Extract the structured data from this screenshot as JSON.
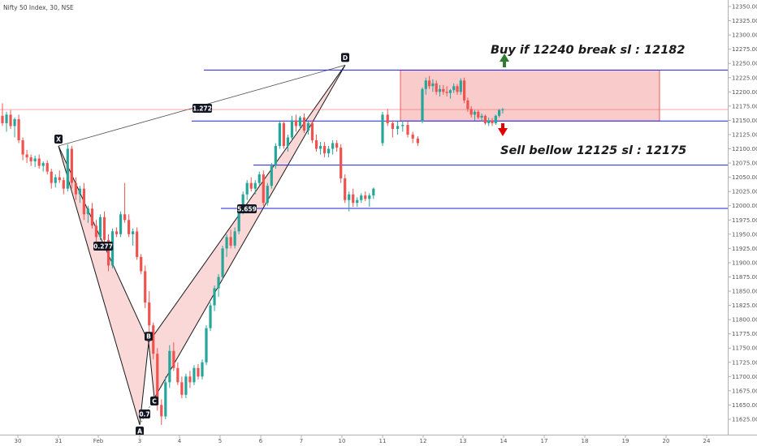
{
  "header": {
    "symbol_title": "Nifty 50 Index, 30, NSE"
  },
  "chart_data": {
    "type": "candlestick",
    "title": "Nifty 50 Index, 30, NSE",
    "y_axis": {
      "position": "right",
      "range": [
        11608,
        12370
      ],
      "ticks": [
        11625,
        11650,
        11675,
        11700,
        11725,
        11750,
        11775,
        11800,
        11825,
        11850,
        11875,
        11900,
        11925,
        11950,
        11975,
        12000,
        12025,
        12050,
        12075,
        12100,
        12125,
        12150,
        12175,
        12200,
        12225,
        12250,
        12275,
        12300,
        12325,
        12350
      ],
      "tick_labels": [
        "11625.00",
        "11650.00",
        "11675.00",
        "11700.00",
        "11725.00",
        "11750.00",
        "11775.00",
        "11800.00",
        "11825.00",
        "11850.00",
        "11875.00",
        "11900.00",
        "11925.00",
        "11950.00",
        "11975.00",
        "12000.00",
        "12025.00",
        "12050.00",
        "12075.00",
        "12100.00",
        "12125.00",
        "12150.00",
        "12175.00",
        "12200.00",
        "12225.00",
        "12250.00",
        "12275.00",
        "12300.00",
        "12325.00",
        "12350.00"
      ]
    },
    "x_axis": {
      "position": "bottom",
      "tick_labels": [
        "30",
        "31",
        "Feb",
        "3",
        "4",
        "5",
        "6",
        "7",
        "10",
        "11",
        "12",
        "13",
        "14",
        "17",
        "18",
        "19",
        "20",
        "24"
      ]
    },
    "grid": false,
    "last_price": {
      "value": 12168.95,
      "label": "12168.95",
      "color": "#ef5350"
    },
    "levels": [
      {
        "value": 12238.33,
        "label": "12238.33",
        "color": "#1e22d8"
      },
      {
        "value": 12148.89,
        "label": "12148.89",
        "color": "#1e22d8"
      },
      {
        "value": 12071.4,
        "label": "12071.40",
        "color": "#1e22d8"
      },
      {
        "value": 11995.3,
        "label": "11995.30",
        "color": "#1e22d8"
      }
    ],
    "harmonic_pattern": {
      "points": [
        {
          "name": "X",
          "price": 12105
        },
        {
          "name": "A",
          "price": 11615
        },
        {
          "name": "B",
          "price": 11760
        },
        {
          "name": "C",
          "price": 11662
        },
        {
          "name": "D",
          "price": 12247
        }
      ],
      "ratios": [
        "0.277",
        "0.7",
        "1.272",
        "5.659"
      ],
      "fill_color": "#f8c8c8",
      "line_color": "#1a1a1a"
    },
    "zone": {
      "top": 12238.33,
      "bottom": 12148.89,
      "fill_color": "#f7a8a8",
      "border_color": "#e53935"
    },
    "annotations": {
      "buy_text": "Buy if 12240 break sl : 12182",
      "sell_text": "Sell bellow 12125 sl : 12175"
    },
    "colors": {
      "up": "#26a69a",
      "down": "#ef5350",
      "buy_arrow": "#2e7d32",
      "sell_arrow": "#e00000"
    },
    "candles": [
      {
        "o": 12158,
        "h": 12180,
        "l": 12140,
        "c": 12145
      },
      {
        "o": 12145,
        "h": 12165,
        "l": 12130,
        "c": 12160
      },
      {
        "o": 12160,
        "h": 12168,
        "l": 12135,
        "c": 12140
      },
      {
        "o": 12140,
        "h": 12155,
        "l": 12120,
        "c": 12152
      },
      {
        "o": 12152,
        "h": 12160,
        "l": 12110,
        "c": 12115
      },
      {
        "o": 12115,
        "h": 12120,
        "l": 12080,
        "c": 12090
      },
      {
        "o": 12090,
        "h": 12098,
        "l": 12075,
        "c": 12085
      },
      {
        "o": 12085,
        "h": 12090,
        "l": 12070,
        "c": 12078
      },
      {
        "o": 12078,
        "h": 12088,
        "l": 12068,
        "c": 12083
      },
      {
        "o": 12083,
        "h": 12090,
        "l": 12065,
        "c": 12070
      },
      {
        "o": 12070,
        "h": 12078,
        "l": 12060,
        "c": 12075
      },
      {
        "o": 12075,
        "h": 12080,
        "l": 12055,
        "c": 12060
      },
      {
        "o": 12060,
        "h": 12065,
        "l": 12030,
        "c": 12040
      },
      {
        "o": 12040,
        "h": 12055,
        "l": 12032,
        "c": 12050
      },
      {
        "o": 12050,
        "h": 12062,
        "l": 12040,
        "c": 12045
      },
      {
        "o": 12045,
        "h": 12050,
        "l": 12020,
        "c": 12030
      },
      {
        "o": 12030,
        "h": 12108,
        "l": 12025,
        "c": 12100
      },
      {
        "o": 12100,
        "h": 12105,
        "l": 12030,
        "c": 12040
      },
      {
        "o": 12040,
        "h": 12050,
        "l": 12010,
        "c": 12020
      },
      {
        "o": 12020,
        "h": 12035,
        "l": 12005,
        "c": 12030
      },
      {
        "o": 12030,
        "h": 12040,
        "l": 11975,
        "c": 11985
      },
      {
        "o": 11985,
        "h": 12000,
        "l": 11970,
        "c": 11995
      },
      {
        "o": 11995,
        "h": 12005,
        "l": 11960,
        "c": 11965
      },
      {
        "o": 11965,
        "h": 11975,
        "l": 11935,
        "c": 11945
      },
      {
        "o": 11945,
        "h": 11985,
        "l": 11940,
        "c": 11980
      },
      {
        "o": 11980,
        "h": 11990,
        "l": 11935,
        "c": 11940
      },
      {
        "o": 11940,
        "h": 11950,
        "l": 11885,
        "c": 11895
      },
      {
        "o": 11895,
        "h": 11960,
        "l": 11890,
        "c": 11955
      },
      {
        "o": 11955,
        "h": 11962,
        "l": 11945,
        "c": 11950
      },
      {
        "o": 11950,
        "h": 11990,
        "l": 11945,
        "c": 11985
      },
      {
        "o": 11985,
        "h": 12040,
        "l": 11970,
        "c": 11975
      },
      {
        "o": 11975,
        "h": 11985,
        "l": 11945,
        "c": 11950
      },
      {
        "o": 11950,
        "h": 11960,
        "l": 11930,
        "c": 11955
      },
      {
        "o": 11955,
        "h": 11962,
        "l": 11905,
        "c": 11910
      },
      {
        "o": 11910,
        "h": 11915,
        "l": 11880,
        "c": 11885
      },
      {
        "o": 11885,
        "h": 11895,
        "l": 11820,
        "c": 11830
      },
      {
        "o": 11830,
        "h": 11850,
        "l": 11775,
        "c": 11790
      },
      {
        "o": 11790,
        "h": 11795,
        "l": 11730,
        "c": 11740
      },
      {
        "o": 11740,
        "h": 11750,
        "l": 11640,
        "c": 11650
      },
      {
        "o": 11650,
        "h": 11660,
        "l": 11615,
        "c": 11630
      },
      {
        "o": 11630,
        "h": 11700,
        "l": 11625,
        "c": 11690
      },
      {
        "o": 11690,
        "h": 11755,
        "l": 11680,
        "c": 11745
      },
      {
        "o": 11745,
        "h": 11760,
        "l": 11710,
        "c": 11715
      },
      {
        "o": 11715,
        "h": 11725,
        "l": 11685,
        "c": 11690
      },
      {
        "o": 11690,
        "h": 11700,
        "l": 11662,
        "c": 11668
      },
      {
        "o": 11668,
        "h": 11705,
        "l": 11662,
        "c": 11700
      },
      {
        "o": 11700,
        "h": 11710,
        "l": 11680,
        "c": 11690
      },
      {
        "o": 11690,
        "h": 11720,
        "l": 11685,
        "c": 11715
      },
      {
        "o": 11715,
        "h": 11722,
        "l": 11695,
        "c": 11700
      },
      {
        "o": 11700,
        "h": 11730,
        "l": 11695,
        "c": 11725
      },
      {
        "o": 11725,
        "h": 11790,
        "l": 11720,
        "c": 11785
      },
      {
        "o": 11785,
        "h": 11830,
        "l": 11780,
        "c": 11825
      },
      {
        "o": 11825,
        "h": 11860,
        "l": 11815,
        "c": 11855
      },
      {
        "o": 11855,
        "h": 11880,
        "l": 11840,
        "c": 11875
      },
      {
        "o": 11875,
        "h": 11930,
        "l": 11870,
        "c": 11925
      },
      {
        "o": 11925,
        "h": 11950,
        "l": 11910,
        "c": 11945
      },
      {
        "o": 11945,
        "h": 11958,
        "l": 11925,
        "c": 11930
      },
      {
        "o": 11930,
        "h": 11962,
        "l": 11925,
        "c": 11955
      },
      {
        "o": 11955,
        "h": 12000,
        "l": 11950,
        "c": 11995
      },
      {
        "o": 11995,
        "h": 12025,
        "l": 11985,
        "c": 12020
      },
      {
        "o": 12020,
        "h": 12045,
        "l": 12010,
        "c": 12040
      },
      {
        "o": 12040,
        "h": 12050,
        "l": 12025,
        "c": 12030
      },
      {
        "o": 12030,
        "h": 12045,
        "l": 12020,
        "c": 12040
      },
      {
        "o": 12040,
        "h": 12060,
        "l": 12035,
        "c": 12055
      },
      {
        "o": 12055,
        "h": 12062,
        "l": 12000,
        "c": 12005
      },
      {
        "o": 12005,
        "h": 12040,
        "l": 12000,
        "c": 12035
      },
      {
        "o": 12035,
        "h": 12075,
        "l": 12030,
        "c": 12070
      },
      {
        "o": 12070,
        "h": 12110,
        "l": 12065,
        "c": 12105
      },
      {
        "o": 12105,
        "h": 12150,
        "l": 12100,
        "c": 12145
      },
      {
        "o": 12145,
        "h": 12150,
        "l": 12100,
        "c": 12105
      },
      {
        "o": 12105,
        "h": 12125,
        "l": 12095,
        "c": 12120
      },
      {
        "o": 12120,
        "h": 12158,
        "l": 12115,
        "c": 12150
      },
      {
        "o": 12150,
        "h": 12160,
        "l": 12130,
        "c": 12140
      },
      {
        "o": 12140,
        "h": 12158,
        "l": 12135,
        "c": 12155
      },
      {
        "o": 12155,
        "h": 12162,
        "l": 12128,
        "c": 12132
      },
      {
        "o": 12132,
        "h": 12150,
        "l": 12125,
        "c": 12145
      },
      {
        "o": 12145,
        "h": 12150,
        "l": 12110,
        "c": 12115
      },
      {
        "o": 12115,
        "h": 12125,
        "l": 12095,
        "c": 12100
      },
      {
        "o": 12100,
        "h": 12112,
        "l": 12090,
        "c": 12105
      },
      {
        "o": 12105,
        "h": 12112,
        "l": 12085,
        "c": 12092
      },
      {
        "o": 12092,
        "h": 12105,
        "l": 12085,
        "c": 12100
      },
      {
        "o": 12100,
        "h": 12115,
        "l": 12090,
        "c": 12110
      },
      {
        "o": 12110,
        "h": 12115,
        "l": 12095,
        "c": 12102
      },
      {
        "o": 12102,
        "h": 12108,
        "l": 12040,
        "c": 12048
      },
      {
        "o": 12048,
        "h": 12055,
        "l": 12005,
        "c": 12010
      },
      {
        "o": 12010,
        "h": 12025,
        "l": 11990,
        "c": 12020
      },
      {
        "o": 12020,
        "h": 12030,
        "l": 11998,
        "c": 12005
      },
      {
        "o": 12005,
        "h": 12015,
        "l": 11998,
        "c": 12010
      },
      {
        "o": 12010,
        "h": 12022,
        "l": 12005,
        "c": 12018
      },
      {
        "o": 12018,
        "h": 12025,
        "l": 12008,
        "c": 12012
      },
      {
        "o": 12012,
        "h": 12022,
        "l": 11998,
        "c": 12018
      },
      {
        "o": 12018,
        "h": 12032,
        "l": 12012,
        "c": 12030
      },
      {
        "o": 12110,
        "h": 12165,
        "l": 12105,
        "c": 12160
      },
      {
        "o": 12160,
        "h": 12170,
        "l": 12140,
        "c": 12145
      },
      {
        "o": 12145,
        "h": 12150,
        "l": 12120,
        "c": 12135
      },
      {
        "o": 12135,
        "h": 12148,
        "l": 12125,
        "c": 12140
      },
      {
        "o": 12140,
        "h": 12150,
        "l": 12130,
        "c": 12142
      },
      {
        "o": 12142,
        "h": 12148,
        "l": 12120,
        "c": 12125
      },
      {
        "o": 12125,
        "h": 12130,
        "l": 12110,
        "c": 12118
      },
      {
        "o": 12118,
        "h": 12122,
        "l": 12105,
        "c": 12110
      },
      {
        "o": 12148,
        "h": 12208,
        "l": 12145,
        "c": 12205
      },
      {
        "o": 12205,
        "h": 12225,
        "l": 12195,
        "c": 12220
      },
      {
        "o": 12220,
        "h": 12228,
        "l": 12205,
        "c": 12210
      },
      {
        "o": 12210,
        "h": 12222,
        "l": 12200,
        "c": 12215
      },
      {
        "o": 12215,
        "h": 12220,
        "l": 12195,
        "c": 12200
      },
      {
        "o": 12200,
        "h": 12212,
        "l": 12192,
        "c": 12205
      },
      {
        "o": 12205,
        "h": 12212,
        "l": 12195,
        "c": 12200
      },
      {
        "o": 12200,
        "h": 12210,
        "l": 12192,
        "c": 12198
      },
      {
        "o": 12198,
        "h": 12205,
        "l": 12188,
        "c": 12203
      },
      {
        "o": 12203,
        "h": 12215,
        "l": 12198,
        "c": 12210
      },
      {
        "o": 12210,
        "h": 12214,
        "l": 12195,
        "c": 12200
      },
      {
        "o": 12200,
        "h": 12224,
        "l": 12195,
        "c": 12220
      },
      {
        "o": 12220,
        "h": 12225,
        "l": 12180,
        "c": 12185
      },
      {
        "o": 12185,
        "h": 12190,
        "l": 12165,
        "c": 12170
      },
      {
        "o": 12170,
        "h": 12175,
        "l": 12155,
        "c": 12160
      },
      {
        "o": 12160,
        "h": 12168,
        "l": 12150,
        "c": 12165
      },
      {
        "o": 12165,
        "h": 12168,
        "l": 12152,
        "c": 12155
      },
      {
        "o": 12155,
        "h": 12162,
        "l": 12148,
        "c": 12158
      },
      {
        "o": 12158,
        "h": 12160,
        "l": 12142,
        "c": 12145
      },
      {
        "o": 12145,
        "h": 12155,
        "l": 12140,
        "c": 12150
      },
      {
        "o": 12150,
        "h": 12154,
        "l": 12140,
        "c": 12145
      },
      {
        "o": 12145,
        "h": 12160,
        "l": 12142,
        "c": 12158
      },
      {
        "o": 12158,
        "h": 12170,
        "l": 12155,
        "c": 12168
      },
      {
        "o": 12168,
        "h": 12172,
        "l": 12162,
        "c": 12169
      }
    ]
  }
}
